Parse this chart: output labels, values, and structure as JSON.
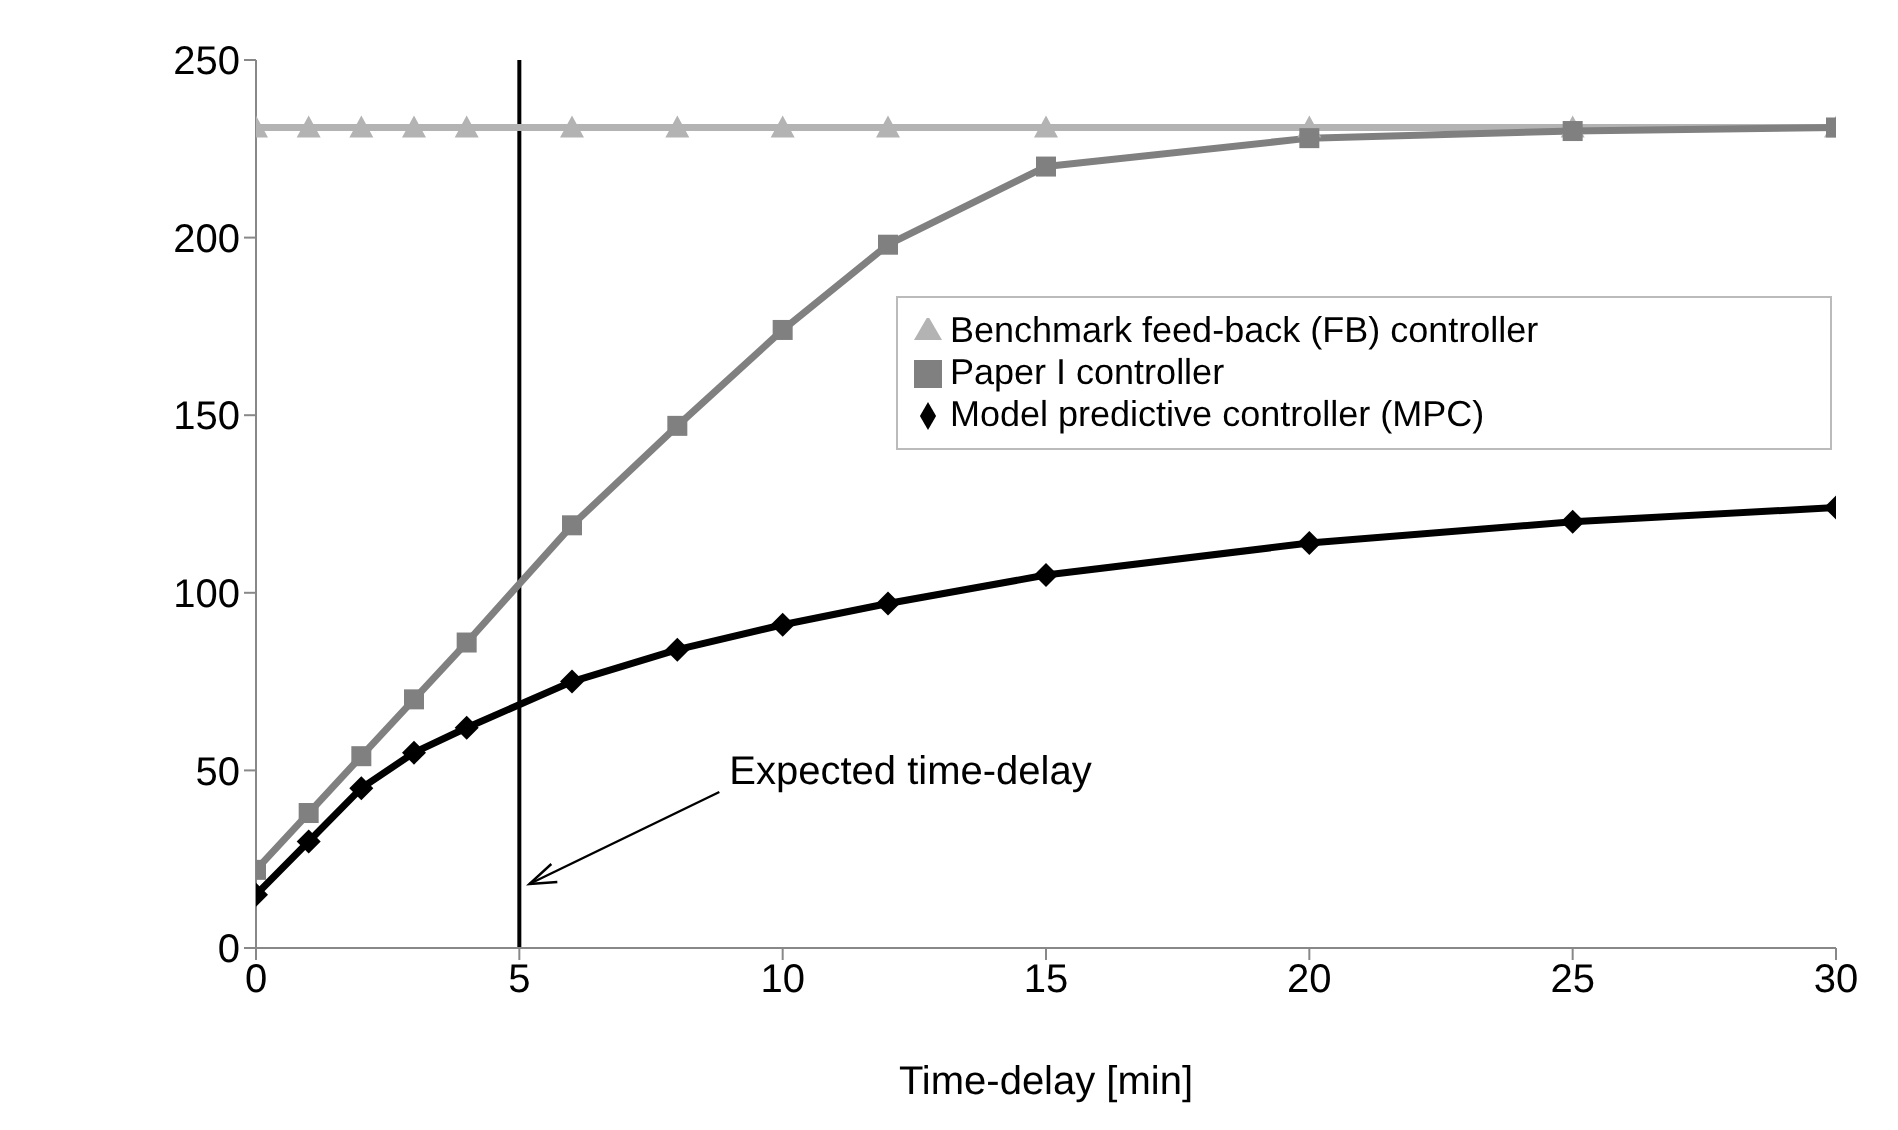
{
  "chart_data": {
    "type": "line",
    "xlabel": "Time-delay [min]",
    "x": [
      0,
      1,
      2,
      3,
      4,
      6,
      8,
      10,
      12,
      15,
      20,
      25,
      30
    ],
    "series": [
      {
        "name": "Benchmark feed-back (FB) controller",
        "color": "#b3b3b3",
        "marker": "triangle",
        "values": [
          231,
          231,
          231,
          231,
          231,
          231,
          231,
          231,
          231,
          231,
          231,
          231,
          231
        ]
      },
      {
        "name": "Paper I controller",
        "color": "#808080",
        "marker": "square",
        "values": [
          22,
          38,
          54,
          70,
          86,
          119,
          147,
          174,
          198,
          220,
          228,
          230,
          231
        ]
      },
      {
        "name": "Model predictive controller (MPC)",
        "color": "#000000",
        "marker": "diamond",
        "values": [
          15,
          30,
          45,
          55,
          62,
          75,
          84,
          91,
          97,
          105,
          114,
          120,
          124
        ]
      }
    ],
    "xlim": [
      0,
      30
    ],
    "xticks": [
      0,
      5,
      10,
      15,
      20,
      25,
      30
    ],
    "ylim": [
      0,
      250
    ],
    "yticks": [
      0,
      50,
      100,
      150,
      200,
      250
    ],
    "grid": false,
    "legend": "right",
    "ref_lines": [
      {
        "axis": "x",
        "value": 5,
        "color": "#000000"
      }
    ],
    "annotations": [
      "Expected time-delay"
    ]
  }
}
